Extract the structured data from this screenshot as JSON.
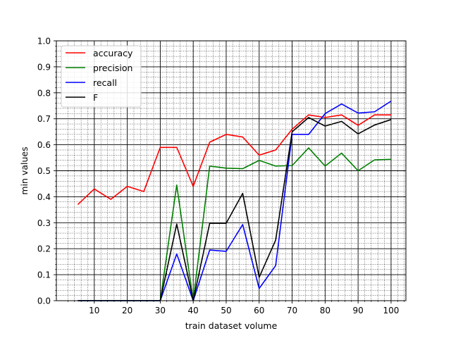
{
  "chart_data": {
    "type": "line",
    "xlabel": "train dataset volume",
    "ylabel": "min values",
    "x": [
      5,
      10,
      15,
      20,
      25,
      30,
      35,
      40,
      45,
      50,
      55,
      60,
      65,
      70,
      75,
      80,
      85,
      90,
      95,
      100
    ],
    "xlim": [
      -1.5,
      104.5
    ],
    "ylim": [
      0.0,
      1.0
    ],
    "xticks": [
      10,
      20,
      30,
      40,
      50,
      60,
      70,
      80,
      90,
      100
    ],
    "yticks": [
      "0.0",
      "0.1",
      "0.2",
      "0.3",
      "0.4",
      "0.5",
      "0.6",
      "0.7",
      "0.8",
      "0.9",
      "1.0"
    ],
    "grid": "major and minor",
    "legend_position": "top-left",
    "series": [
      {
        "name": "accuracy",
        "color": "#ff0000",
        "values": [
          0.37,
          0.43,
          0.39,
          0.44,
          0.42,
          0.59,
          0.59,
          0.44,
          0.61,
          0.64,
          0.63,
          0.56,
          0.58,
          0.66,
          0.715,
          0.705,
          0.715,
          0.675,
          0.715,
          0.715
        ]
      },
      {
        "name": "precision",
        "color": "#008000",
        "values": [
          0.0,
          0.0,
          0.0,
          0.0,
          0.0,
          0.0,
          0.445,
          0.0,
          0.518,
          0.51,
          0.508,
          0.54,
          0.518,
          0.52,
          0.588,
          0.518,
          0.568,
          0.5,
          0.542,
          0.544
        ]
      },
      {
        "name": "recall",
        "color": "#0000ff",
        "values": [
          0.0,
          0.0,
          0.0,
          0.0,
          0.0,
          0.0,
          0.18,
          0.0,
          0.195,
          0.19,
          0.293,
          0.047,
          0.135,
          0.64,
          0.64,
          0.72,
          0.757,
          0.722,
          0.727,
          0.768
        ]
      },
      {
        "name": "F",
        "color": "#000000",
        "values": [
          0.0,
          0.0,
          0.0,
          0.0,
          0.0,
          0.0,
          0.295,
          0.0,
          0.298,
          0.298,
          0.413,
          0.09,
          0.233,
          0.65,
          0.705,
          0.672,
          0.69,
          0.642,
          0.676,
          0.697
        ]
      }
    ]
  }
}
